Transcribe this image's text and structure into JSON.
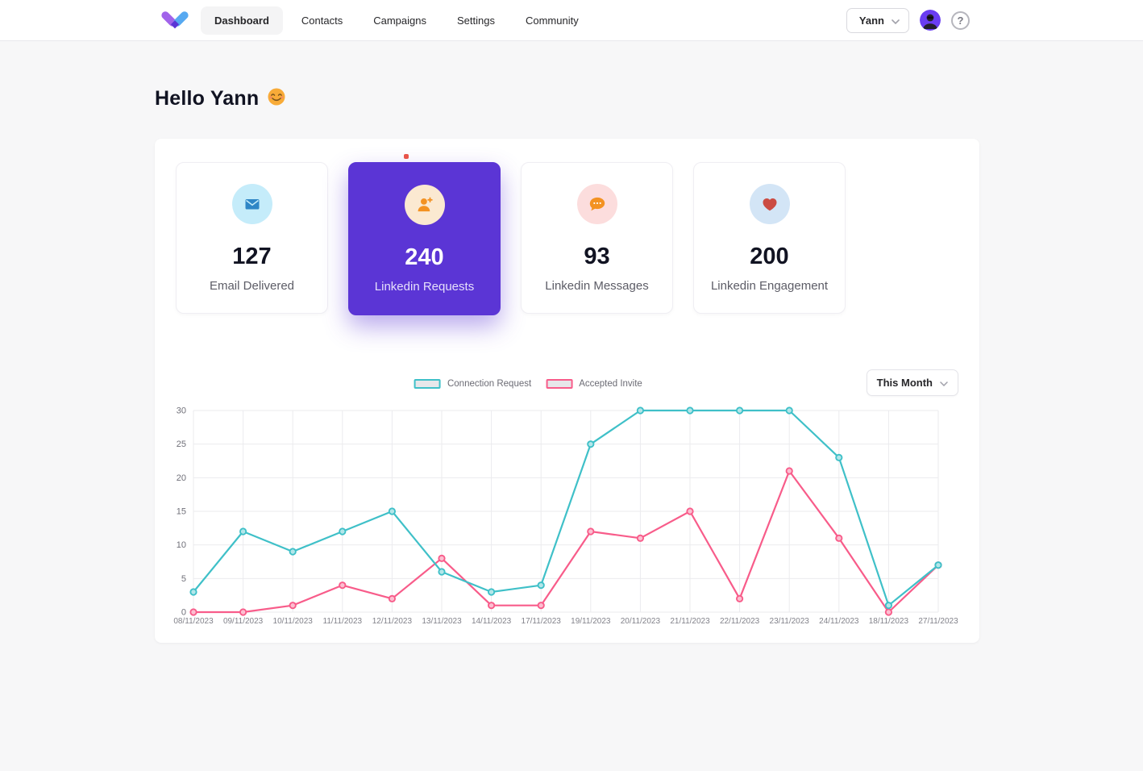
{
  "header": {
    "nav": [
      {
        "label": "Dashboard",
        "active": true
      },
      {
        "label": "Contacts",
        "active": false
      },
      {
        "label": "Campaigns",
        "active": false
      },
      {
        "label": "Settings",
        "active": false
      },
      {
        "label": "Community",
        "active": false
      }
    ],
    "user_button_label": "Yann",
    "help_icon": "?"
  },
  "greeting": {
    "text": "Hello Yann",
    "emoji_name": "smiling-face-emoji"
  },
  "stats": [
    {
      "value": "127",
      "label": "Email Delivered",
      "icon": "envelope-icon",
      "icon_bg": "#c5ecfa",
      "icon_color": "#2f86c6",
      "highlight": false
    },
    {
      "value": "240",
      "label": "Linkedin Requests",
      "icon": "person-add-icon",
      "icon_bg": "#fbe9d1",
      "icon_color": "#f39222",
      "highlight": true
    },
    {
      "value": "93",
      "label": "Linkedin Messages",
      "icon": "chat-bubble-icon",
      "icon_bg": "#fcdddd",
      "icon_color": "#f39222",
      "highlight": false
    },
    {
      "value": "200",
      "label": "Linkedin Engagement",
      "icon": "heart-icon",
      "icon_bg": "#d3e5f6",
      "icon_color": "#cb4b42",
      "highlight": false
    }
  ],
  "chart": {
    "period_label": "This Month",
    "accent_purple": "#5b35d5"
  },
  "chart_data": {
    "type": "line",
    "categories": [
      "08/11/2023",
      "09/11/2023",
      "10/11/2023",
      "11/11/2023",
      "12/11/2023",
      "13/11/2023",
      "14/11/2023",
      "17/11/2023",
      "19/11/2023",
      "20/11/2023",
      "21/11/2023",
      "22/11/2023",
      "23/11/2023",
      "24/11/2023",
      "18/11/2023",
      "27/11/2023"
    ],
    "series": [
      {
        "name": "Connection Request",
        "color": "#3fc0c8",
        "values": [
          3,
          12,
          9,
          12,
          15,
          6,
          3,
          4,
          25,
          30,
          30,
          30,
          30,
          23,
          1,
          7
        ]
      },
      {
        "name": "Accepted Invite",
        "color": "#f85c8a",
        "values": [
          0,
          0,
          1,
          4,
          2,
          8,
          1,
          1,
          12,
          11,
          15,
          2,
          21,
          11,
          0,
          7
        ]
      }
    ],
    "title": "",
    "xlabel": "",
    "ylabel": "",
    "ylim": [
      0,
      30
    ],
    "yticks": [
      0,
      5,
      10,
      15,
      20,
      25,
      30
    ],
    "grid": true,
    "legend_position": "top"
  }
}
